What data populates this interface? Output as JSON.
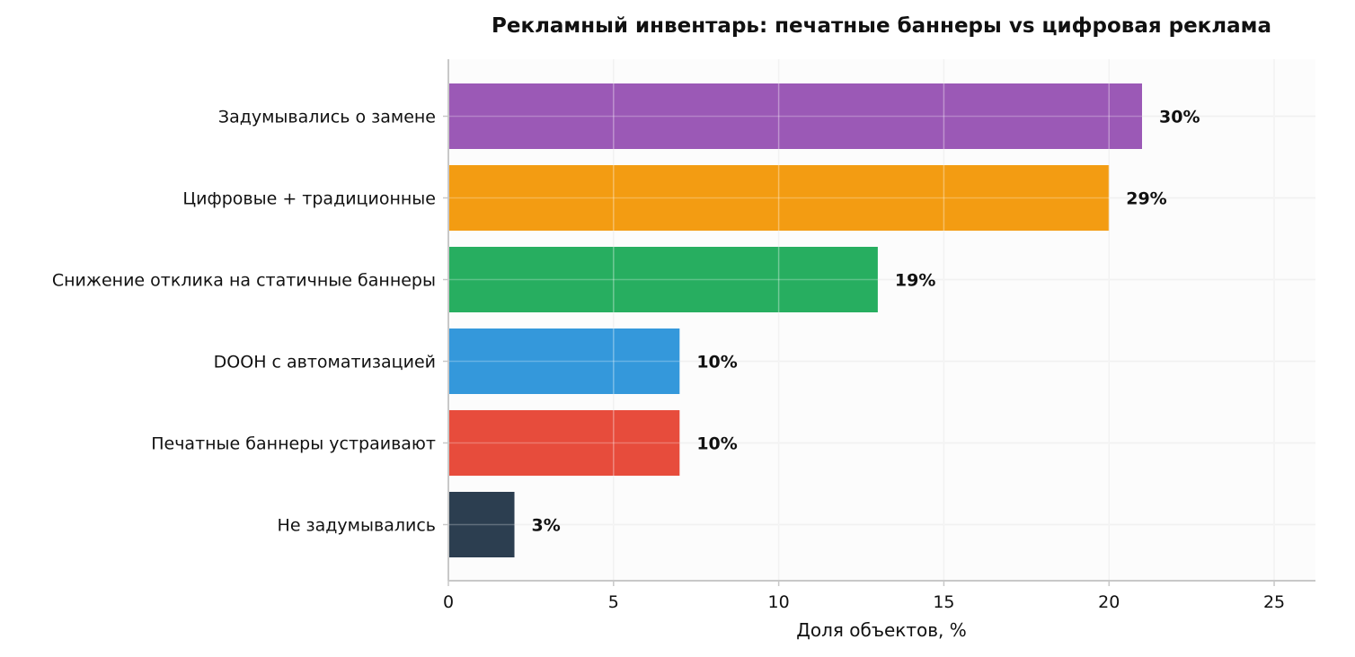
{
  "chart_data": {
    "type": "bar",
    "orientation": "horizontal",
    "title": "Рекламный инвентарь: печатные баннеры vs цифровая реклама",
    "xlabel": "Доля объектов, %",
    "ylabel": "",
    "xlim": [
      0,
      26.25
    ],
    "xticks": [
      0,
      5,
      10,
      15,
      20,
      25
    ],
    "grid": true,
    "categories": [
      "Задумывались о замене",
      "Цифровые + традиционные",
      "Снижение отклика на статичные баннеры",
      "DOOH с автоматизацией",
      "Печатные баннеры устраивают",
      "Не задумывались"
    ],
    "values": [
      21,
      20,
      13,
      7,
      7,
      2
    ],
    "data_labels": [
      "30%",
      "29%",
      "19%",
      "10%",
      "10%",
      "3%"
    ],
    "colors": [
      "#9b59b6",
      "#f39c12",
      "#27ae60",
      "#3498db",
      "#e74c3c",
      "#2c3e50"
    ]
  }
}
